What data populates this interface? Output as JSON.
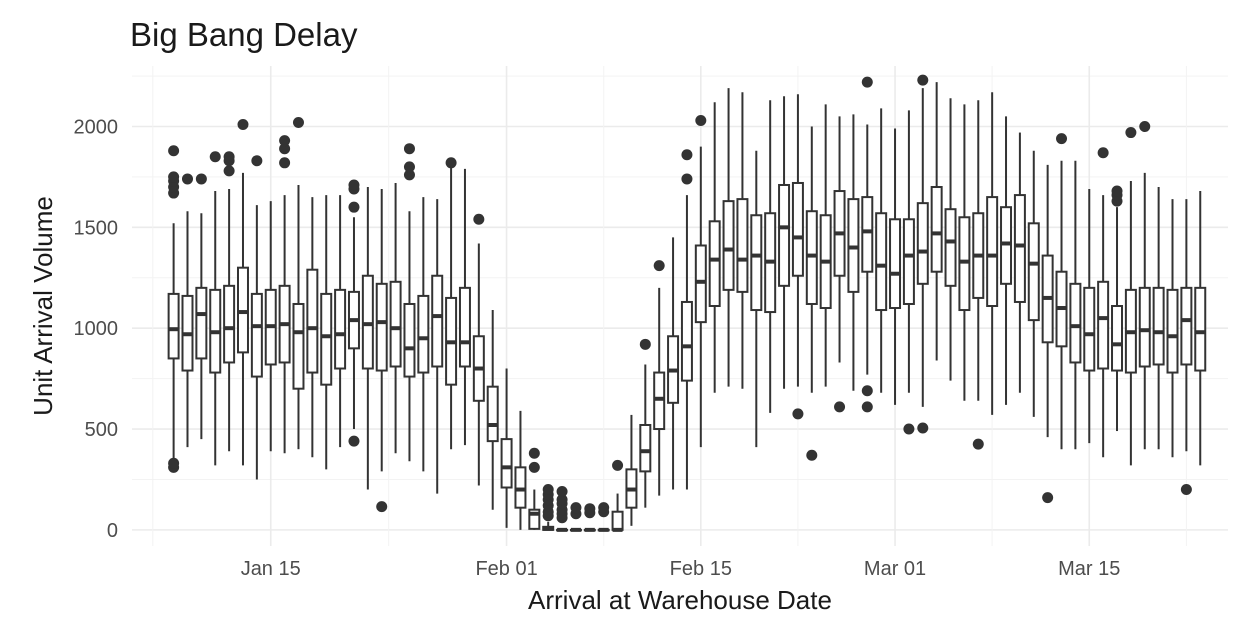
{
  "chart_data": {
    "type": "boxplot",
    "title": "Big Bang Delay",
    "xlabel": "Arrival at Warehouse Date",
    "ylabel": "Unit Arrival Volume",
    "x_ticks": [
      "Jan 15",
      "Feb 01",
      "Feb 15",
      "Mar 01",
      "Mar 15"
    ],
    "y_ticks": [
      0,
      500,
      1000,
      1500,
      2000
    ],
    "x_range": [
      "2023-01-05",
      "2023-03-25"
    ],
    "ylim": [
      -80,
      2300
    ],
    "grid": true,
    "boxes": [
      {
        "date": "2023-01-08",
        "whisker_low": 330,
        "q1": 850,
        "median": 995,
        "q3": 1170,
        "whisker_high": 1520,
        "outliers": [
          310,
          330,
          1670,
          1700,
          1730,
          1750,
          1880
        ]
      },
      {
        "date": "2023-01-09",
        "whisker_low": 410,
        "q1": 790,
        "median": 970,
        "q3": 1160,
        "whisker_high": 1580,
        "outliers": [
          1740
        ]
      },
      {
        "date": "2023-01-10",
        "whisker_low": 450,
        "q1": 850,
        "median": 1070,
        "q3": 1200,
        "whisker_high": 1570,
        "outliers": [
          1740
        ]
      },
      {
        "date": "2023-01-11",
        "whisker_low": 320,
        "q1": 780,
        "median": 980,
        "q3": 1190,
        "whisker_high": 1680,
        "outliers": [
          1850
        ]
      },
      {
        "date": "2023-01-12",
        "whisker_low": 390,
        "q1": 830,
        "median": 1000,
        "q3": 1210,
        "whisker_high": 1690,
        "outliers": [
          1780,
          1830,
          1850
        ]
      },
      {
        "date": "2023-01-13",
        "whisker_low": 320,
        "q1": 880,
        "median": 1080,
        "q3": 1300,
        "whisker_high": 1770,
        "outliers": [
          2010
        ]
      },
      {
        "date": "2023-01-14",
        "whisker_low": 250,
        "q1": 760,
        "median": 1010,
        "q3": 1170,
        "whisker_high": 1610,
        "outliers": [
          1830
        ]
      },
      {
        "date": "2023-01-15",
        "whisker_low": 390,
        "q1": 820,
        "median": 1010,
        "q3": 1190,
        "whisker_high": 1630,
        "outliers": []
      },
      {
        "date": "2023-01-16",
        "whisker_low": 380,
        "q1": 830,
        "median": 1020,
        "q3": 1210,
        "whisker_high": 1660,
        "outliers": [
          1820,
          1890,
          1930
        ]
      },
      {
        "date": "2023-01-17",
        "whisker_low": 400,
        "q1": 700,
        "median": 980,
        "q3": 1120,
        "whisker_high": 1710,
        "outliers": [
          2020
        ]
      },
      {
        "date": "2023-01-18",
        "whisker_low": 360,
        "q1": 780,
        "median": 1000,
        "q3": 1290,
        "whisker_high": 1650,
        "outliers": []
      },
      {
        "date": "2023-01-19",
        "whisker_low": 300,
        "q1": 720,
        "median": 960,
        "q3": 1170,
        "whisker_high": 1660,
        "outliers": []
      },
      {
        "date": "2023-01-20",
        "whisker_low": 410,
        "q1": 800,
        "median": 970,
        "q3": 1190,
        "whisker_high": 1660,
        "outliers": []
      },
      {
        "date": "2023-01-21",
        "whisker_low": 500,
        "q1": 900,
        "median": 1040,
        "q3": 1180,
        "whisker_high": 1550,
        "outliers": [
          440,
          1600,
          1690,
          1710
        ]
      },
      {
        "date": "2023-01-22",
        "whisker_low": 200,
        "q1": 800,
        "median": 1020,
        "q3": 1260,
        "whisker_high": 1700,
        "outliers": []
      },
      {
        "date": "2023-01-23",
        "whisker_low": 290,
        "q1": 790,
        "median": 1030,
        "q3": 1220,
        "whisker_high": 1690,
        "outliers": [
          115
        ]
      },
      {
        "date": "2023-01-24",
        "whisker_low": 380,
        "q1": 810,
        "median": 1000,
        "q3": 1230,
        "whisker_high": 1720,
        "outliers": []
      },
      {
        "date": "2023-01-25",
        "whisker_low": 340,
        "q1": 760,
        "median": 900,
        "q3": 1120,
        "whisker_high": 1580,
        "outliers": [
          1760,
          1800,
          1890
        ]
      },
      {
        "date": "2023-01-26",
        "whisker_low": 290,
        "q1": 780,
        "median": 950,
        "q3": 1160,
        "whisker_high": 1650,
        "outliers": []
      },
      {
        "date": "2023-01-27",
        "whisker_low": 180,
        "q1": 810,
        "median": 1060,
        "q3": 1260,
        "whisker_high": 1640,
        "outliers": []
      },
      {
        "date": "2023-01-28",
        "whisker_low": 400,
        "q1": 720,
        "median": 930,
        "q3": 1150,
        "whisker_high": 1800,
        "outliers": [
          1820
        ]
      },
      {
        "date": "2023-01-29",
        "whisker_low": 420,
        "q1": 810,
        "median": 930,
        "q3": 1200,
        "whisker_high": 1790,
        "outliers": []
      },
      {
        "date": "2023-01-30",
        "whisker_low": 220,
        "q1": 640,
        "median": 800,
        "q3": 960,
        "whisker_high": 1420,
        "outliers": [
          1540
        ]
      },
      {
        "date": "2023-01-31",
        "whisker_low": 100,
        "q1": 440,
        "median": 520,
        "q3": 710,
        "whisker_high": 1090,
        "outliers": []
      },
      {
        "date": "2023-02-01",
        "whisker_low": 10,
        "q1": 210,
        "median": 310,
        "q3": 450,
        "whisker_high": 800,
        "outliers": []
      },
      {
        "date": "2023-02-02",
        "whisker_low": 0,
        "q1": 110,
        "median": 200,
        "q3": 310,
        "whisker_high": 590,
        "outliers": []
      },
      {
        "date": "2023-02-03",
        "whisker_low": 0,
        "q1": 5,
        "median": 80,
        "q3": 100,
        "whisker_high": 200,
        "outliers": [
          310,
          380
        ]
      },
      {
        "date": "2023-02-04",
        "whisker_low": 0,
        "q1": 0,
        "median": 5,
        "q3": 15,
        "whisker_high": 40,
        "outliers": [
          70,
          90,
          120,
          150,
          175,
          200
        ]
      },
      {
        "date": "2023-02-05",
        "whisker_low": 0,
        "q1": 0,
        "median": 0,
        "q3": 0,
        "whisker_high": 0,
        "outliers": [
          60,
          80,
          100,
          130,
          150,
          190
        ]
      },
      {
        "date": "2023-02-06",
        "whisker_low": 0,
        "q1": 0,
        "median": 0,
        "q3": 0,
        "whisker_high": 0,
        "outliers": [
          80,
          110
        ]
      },
      {
        "date": "2023-02-07",
        "whisker_low": 0,
        "q1": 0,
        "median": 0,
        "q3": 0,
        "whisker_high": 0,
        "outliers": [
          85,
          105
        ]
      },
      {
        "date": "2023-02-08",
        "whisker_low": 0,
        "q1": 0,
        "median": 0,
        "q3": 0,
        "whisker_high": 0,
        "outliers": [
          90,
          110
        ]
      },
      {
        "date": "2023-02-09",
        "whisker_low": 0,
        "q1": 0,
        "median": 0,
        "q3": 90,
        "whisker_high": 180,
        "outliers": [
          320
        ]
      },
      {
        "date": "2023-02-10",
        "whisker_low": 20,
        "q1": 110,
        "median": 200,
        "q3": 300,
        "whisker_high": 570,
        "outliers": []
      },
      {
        "date": "2023-02-11",
        "whisker_low": 110,
        "q1": 290,
        "median": 390,
        "q3": 520,
        "whisker_high": 820,
        "outliers": [
          920
        ]
      },
      {
        "date": "2023-02-12",
        "whisker_low": 170,
        "q1": 500,
        "median": 650,
        "q3": 780,
        "whisker_high": 1200,
        "outliers": [
          1310
        ]
      },
      {
        "date": "2023-02-13",
        "whisker_low": 200,
        "q1": 630,
        "median": 790,
        "q3": 960,
        "whisker_high": 1450,
        "outliers": []
      },
      {
        "date": "2023-02-14",
        "whisker_low": 200,
        "q1": 740,
        "median": 910,
        "q3": 1130,
        "whisker_high": 1660,
        "outliers": [
          1740,
          1860
        ]
      },
      {
        "date": "2023-02-15",
        "whisker_low": 410,
        "q1": 1030,
        "median": 1230,
        "q3": 1410,
        "whisker_high": 1900,
        "outliers": [
          2030
        ]
      },
      {
        "date": "2023-02-16",
        "whisker_low": 680,
        "q1": 1110,
        "median": 1340,
        "q3": 1530,
        "whisker_high": 2120,
        "outliers": []
      },
      {
        "date": "2023-02-17",
        "whisker_low": 710,
        "q1": 1190,
        "median": 1390,
        "q3": 1630,
        "whisker_high": 2190,
        "outliers": []
      },
      {
        "date": "2023-02-18",
        "whisker_low": 700,
        "q1": 1180,
        "median": 1340,
        "q3": 1640,
        "whisker_high": 2170,
        "outliers": []
      },
      {
        "date": "2023-02-19",
        "whisker_low": 410,
        "q1": 1090,
        "median": 1360,
        "q3": 1560,
        "whisker_high": 1880,
        "outliers": []
      },
      {
        "date": "2023-02-20",
        "whisker_low": 580,
        "q1": 1080,
        "median": 1330,
        "q3": 1570,
        "whisker_high": 2130,
        "outliers": []
      },
      {
        "date": "2023-02-21",
        "whisker_low": 700,
        "q1": 1210,
        "median": 1500,
        "q3": 1710,
        "whisker_high": 2150,
        "outliers": []
      },
      {
        "date": "2023-02-22",
        "whisker_low": 710,
        "q1": 1260,
        "median": 1450,
        "q3": 1720,
        "whisker_high": 2160,
        "outliers": [
          575
        ]
      },
      {
        "date": "2023-02-23",
        "whisker_low": 680,
        "q1": 1120,
        "median": 1360,
        "q3": 1580,
        "whisker_high": 2000,
        "outliers": [
          370
        ]
      },
      {
        "date": "2023-02-24",
        "whisker_low": 710,
        "q1": 1100,
        "median": 1330,
        "q3": 1560,
        "whisker_high": 2110,
        "outliers": []
      },
      {
        "date": "2023-02-25",
        "whisker_low": 830,
        "q1": 1260,
        "median": 1470,
        "q3": 1680,
        "whisker_high": 2050,
        "outliers": [
          610
        ]
      },
      {
        "date": "2023-02-26",
        "whisker_low": 690,
        "q1": 1180,
        "median": 1400,
        "q3": 1640,
        "whisker_high": 2060,
        "outliers": []
      },
      {
        "date": "2023-02-27",
        "whisker_low": 770,
        "q1": 1280,
        "median": 1480,
        "q3": 1650,
        "whisker_high": 2010,
        "outliers": [
          610,
          690,
          2220
        ]
      },
      {
        "date": "2023-02-28",
        "whisker_low": 680,
        "q1": 1090,
        "median": 1310,
        "q3": 1570,
        "whisker_high": 2090,
        "outliers": []
      },
      {
        "date": "2023-03-01",
        "whisker_low": 620,
        "q1": 1100,
        "median": 1270,
        "q3": 1540,
        "whisker_high": 1990,
        "outliers": []
      },
      {
        "date": "2023-03-02",
        "whisker_low": 680,
        "q1": 1120,
        "median": 1360,
        "q3": 1540,
        "whisker_high": 2080,
        "outliers": [
          500
        ]
      },
      {
        "date": "2023-03-03",
        "whisker_low": 610,
        "q1": 1220,
        "median": 1380,
        "q3": 1620,
        "whisker_high": 2190,
        "outliers": [
          505,
          2230
        ]
      },
      {
        "date": "2023-03-04",
        "whisker_low": 840,
        "q1": 1280,
        "median": 1470,
        "q3": 1700,
        "whisker_high": 2220,
        "outliers": []
      },
      {
        "date": "2023-03-05",
        "whisker_low": 740,
        "q1": 1210,
        "median": 1430,
        "q3": 1590,
        "whisker_high": 2140,
        "outliers": []
      },
      {
        "date": "2023-03-06",
        "whisker_low": 640,
        "q1": 1090,
        "median": 1330,
        "q3": 1550,
        "whisker_high": 2110,
        "outliers": []
      },
      {
        "date": "2023-03-07",
        "whisker_low": 640,
        "q1": 1150,
        "median": 1360,
        "q3": 1570,
        "whisker_high": 2130,
        "outliers": [
          425
        ]
      },
      {
        "date": "2023-03-08",
        "whisker_low": 570,
        "q1": 1110,
        "median": 1360,
        "q3": 1650,
        "whisker_high": 2170,
        "outliers": []
      },
      {
        "date": "2023-03-09",
        "whisker_low": 620,
        "q1": 1220,
        "median": 1420,
        "q3": 1600,
        "whisker_high": 2050,
        "outliers": []
      },
      {
        "date": "2023-03-10",
        "whisker_low": 680,
        "q1": 1130,
        "median": 1410,
        "q3": 1660,
        "whisker_high": 1970,
        "outliers": []
      },
      {
        "date": "2023-03-11",
        "whisker_low": 560,
        "q1": 1040,
        "median": 1320,
        "q3": 1520,
        "whisker_high": 1880,
        "outliers": []
      },
      {
        "date": "2023-03-12",
        "whisker_low": 460,
        "q1": 930,
        "median": 1150,
        "q3": 1360,
        "whisker_high": 1810,
        "outliers": [
          160
        ]
      },
      {
        "date": "2023-03-13",
        "whisker_low": 400,
        "q1": 910,
        "median": 1100,
        "q3": 1280,
        "whisker_high": 1830,
        "outliers": [
          1940
        ]
      },
      {
        "date": "2023-03-14",
        "whisker_low": 400,
        "q1": 830,
        "median": 1010,
        "q3": 1220,
        "whisker_high": 1830,
        "outliers": []
      },
      {
        "date": "2023-03-15",
        "whisker_low": 430,
        "q1": 790,
        "median": 970,
        "q3": 1200,
        "whisker_high": 1690,
        "outliers": []
      },
      {
        "date": "2023-03-16",
        "whisker_low": 360,
        "q1": 800,
        "median": 1050,
        "q3": 1230,
        "whisker_high": 1660,
        "outliers": [
          1870
        ]
      },
      {
        "date": "2023-03-17",
        "whisker_low": 490,
        "q1": 790,
        "median": 920,
        "q3": 1110,
        "whisker_high": 1600,
        "outliers": [
          1630,
          1660,
          1680
        ]
      },
      {
        "date": "2023-03-18",
        "whisker_low": 320,
        "q1": 780,
        "median": 980,
        "q3": 1190,
        "whisker_high": 1730,
        "outliers": [
          1970
        ]
      },
      {
        "date": "2023-03-19",
        "whisker_low": 400,
        "q1": 810,
        "median": 990,
        "q3": 1200,
        "whisker_high": 1770,
        "outliers": [
          2000
        ]
      },
      {
        "date": "2023-03-20",
        "whisker_low": 400,
        "q1": 820,
        "median": 980,
        "q3": 1200,
        "whisker_high": 1700,
        "outliers": []
      },
      {
        "date": "2023-03-21",
        "whisker_low": 360,
        "q1": 780,
        "median": 960,
        "q3": 1190,
        "whisker_high": 1640,
        "outliers": []
      },
      {
        "date": "2023-03-22",
        "whisker_low": 390,
        "q1": 820,
        "median": 1040,
        "q3": 1200,
        "whisker_high": 1640,
        "outliers": [
          200
        ]
      },
      {
        "date": "2023-03-23",
        "whisker_low": 320,
        "q1": 790,
        "median": 980,
        "q3": 1200,
        "whisker_high": 1680,
        "outliers": []
      }
    ]
  }
}
